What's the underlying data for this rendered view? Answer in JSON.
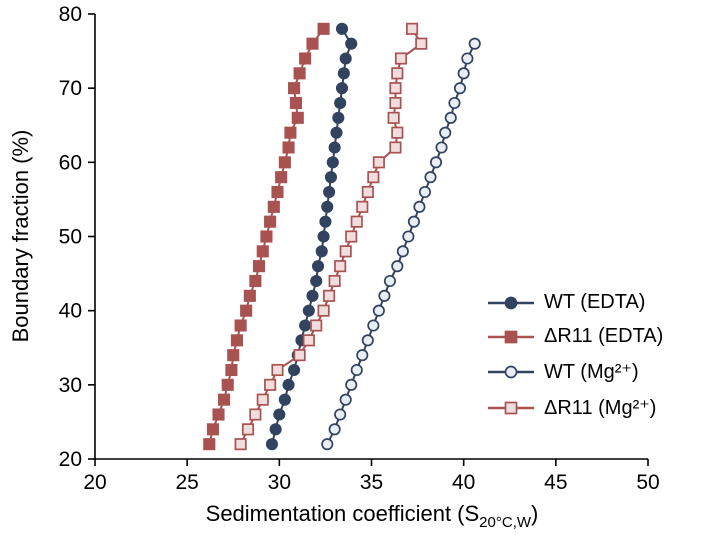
{
  "chart_data": {
    "type": "line",
    "title": "",
    "ylabel": "Boundary fraction (%)",
    "xlabel": {
      "prefix": "Sedimentation coefficient (S",
      "sub": "20°C,W",
      "suffix": ")"
    },
    "xlim": [
      20,
      50
    ],
    "ylim": [
      20,
      80
    ],
    "xticks": [
      20,
      25,
      30,
      35,
      40,
      45,
      50
    ],
    "yticks": [
      20,
      30,
      40,
      50,
      60,
      70,
      80
    ],
    "grid": false,
    "legend_position": "right-middle",
    "series": [
      {
        "name": "WT (EDTA)",
        "marker": "circle",
        "filled": true,
        "color": "#31435f",
        "open_fill": "#31435f",
        "points": [
          [
            29.6,
            22
          ],
          [
            29.8,
            24
          ],
          [
            30.0,
            26
          ],
          [
            30.3,
            28
          ],
          [
            30.5,
            30
          ],
          [
            30.8,
            32
          ],
          [
            31.0,
            34
          ],
          [
            31.2,
            36
          ],
          [
            31.4,
            38
          ],
          [
            31.6,
            40
          ],
          [
            31.8,
            42
          ],
          [
            32.0,
            44
          ],
          [
            32.1,
            46
          ],
          [
            32.3,
            48
          ],
          [
            32.4,
            50
          ],
          [
            32.5,
            52
          ],
          [
            32.6,
            54
          ],
          [
            32.7,
            56
          ],
          [
            32.8,
            58
          ],
          [
            32.9,
            60
          ],
          [
            33.0,
            62
          ],
          [
            33.1,
            64
          ],
          [
            33.2,
            66
          ],
          [
            33.3,
            68
          ],
          [
            33.4,
            70
          ],
          [
            33.5,
            72
          ],
          [
            33.6,
            74
          ],
          [
            33.9,
            76
          ],
          [
            33.4,
            78
          ]
        ]
      },
      {
        "name": "ΔR11 (EDTA)",
        "marker": "square",
        "filled": true,
        "color": "#a85252",
        "open_fill": "#a85252",
        "points": [
          [
            26.2,
            22
          ],
          [
            26.4,
            24
          ],
          [
            26.7,
            26
          ],
          [
            27.0,
            28
          ],
          [
            27.2,
            30
          ],
          [
            27.4,
            32
          ],
          [
            27.5,
            34
          ],
          [
            27.7,
            36
          ],
          [
            27.9,
            38
          ],
          [
            28.2,
            40
          ],
          [
            28.4,
            42
          ],
          [
            28.7,
            44
          ],
          [
            28.9,
            46
          ],
          [
            29.1,
            48
          ],
          [
            29.3,
            50
          ],
          [
            29.5,
            52
          ],
          [
            29.7,
            54
          ],
          [
            29.9,
            56
          ],
          [
            30.1,
            58
          ],
          [
            30.3,
            60
          ],
          [
            30.5,
            62
          ],
          [
            30.6,
            64
          ],
          [
            31.0,
            66
          ],
          [
            30.9,
            68
          ],
          [
            30.8,
            70
          ],
          [
            31.1,
            72
          ],
          [
            31.4,
            74
          ],
          [
            31.8,
            76
          ],
          [
            32.4,
            78
          ]
        ]
      },
      {
        "name": "WT (Mg²⁺)",
        "marker": "circle",
        "filled": false,
        "color": "#31435f",
        "open_fill": "#e9eef5",
        "points": [
          [
            32.6,
            22
          ],
          [
            33.0,
            24
          ],
          [
            33.3,
            26
          ],
          [
            33.6,
            28
          ],
          [
            33.9,
            30
          ],
          [
            34.2,
            32
          ],
          [
            34.5,
            34
          ],
          [
            34.8,
            36
          ],
          [
            35.1,
            38
          ],
          [
            35.4,
            40
          ],
          [
            35.7,
            42
          ],
          [
            36.0,
            44
          ],
          [
            36.4,
            46
          ],
          [
            36.7,
            48
          ],
          [
            37.0,
            50
          ],
          [
            37.3,
            52
          ],
          [
            37.6,
            54
          ],
          [
            37.9,
            56
          ],
          [
            38.2,
            58
          ],
          [
            38.5,
            60
          ],
          [
            38.8,
            62
          ],
          [
            39.0,
            64
          ],
          [
            39.3,
            66
          ],
          [
            39.5,
            68
          ],
          [
            39.8,
            70
          ],
          [
            40.0,
            72
          ],
          [
            40.2,
            74
          ],
          [
            40.6,
            76
          ]
        ]
      },
      {
        "name": "ΔR11 (Mg²⁺)",
        "marker": "square",
        "filled": false,
        "color": "#a85252",
        "open_fill": "#f0dede",
        "points": [
          [
            27.9,
            22
          ],
          [
            28.3,
            24
          ],
          [
            28.7,
            26
          ],
          [
            29.1,
            28
          ],
          [
            29.5,
            30
          ],
          [
            29.9,
            32
          ],
          [
            31.1,
            34
          ],
          [
            31.6,
            36
          ],
          [
            32.0,
            38
          ],
          [
            32.4,
            40
          ],
          [
            32.7,
            42
          ],
          [
            33.0,
            44
          ],
          [
            33.3,
            46
          ],
          [
            33.6,
            48
          ],
          [
            33.9,
            50
          ],
          [
            34.2,
            52
          ],
          [
            34.5,
            54
          ],
          [
            34.8,
            56
          ],
          [
            35.1,
            58
          ],
          [
            35.4,
            60
          ],
          [
            36.3,
            62
          ],
          [
            36.4,
            64
          ],
          [
            36.2,
            66
          ],
          [
            36.3,
            68
          ],
          [
            36.3,
            70
          ],
          [
            36.4,
            72
          ],
          [
            36.6,
            74
          ],
          [
            37.7,
            76
          ],
          [
            37.2,
            78
          ]
        ]
      }
    ]
  }
}
